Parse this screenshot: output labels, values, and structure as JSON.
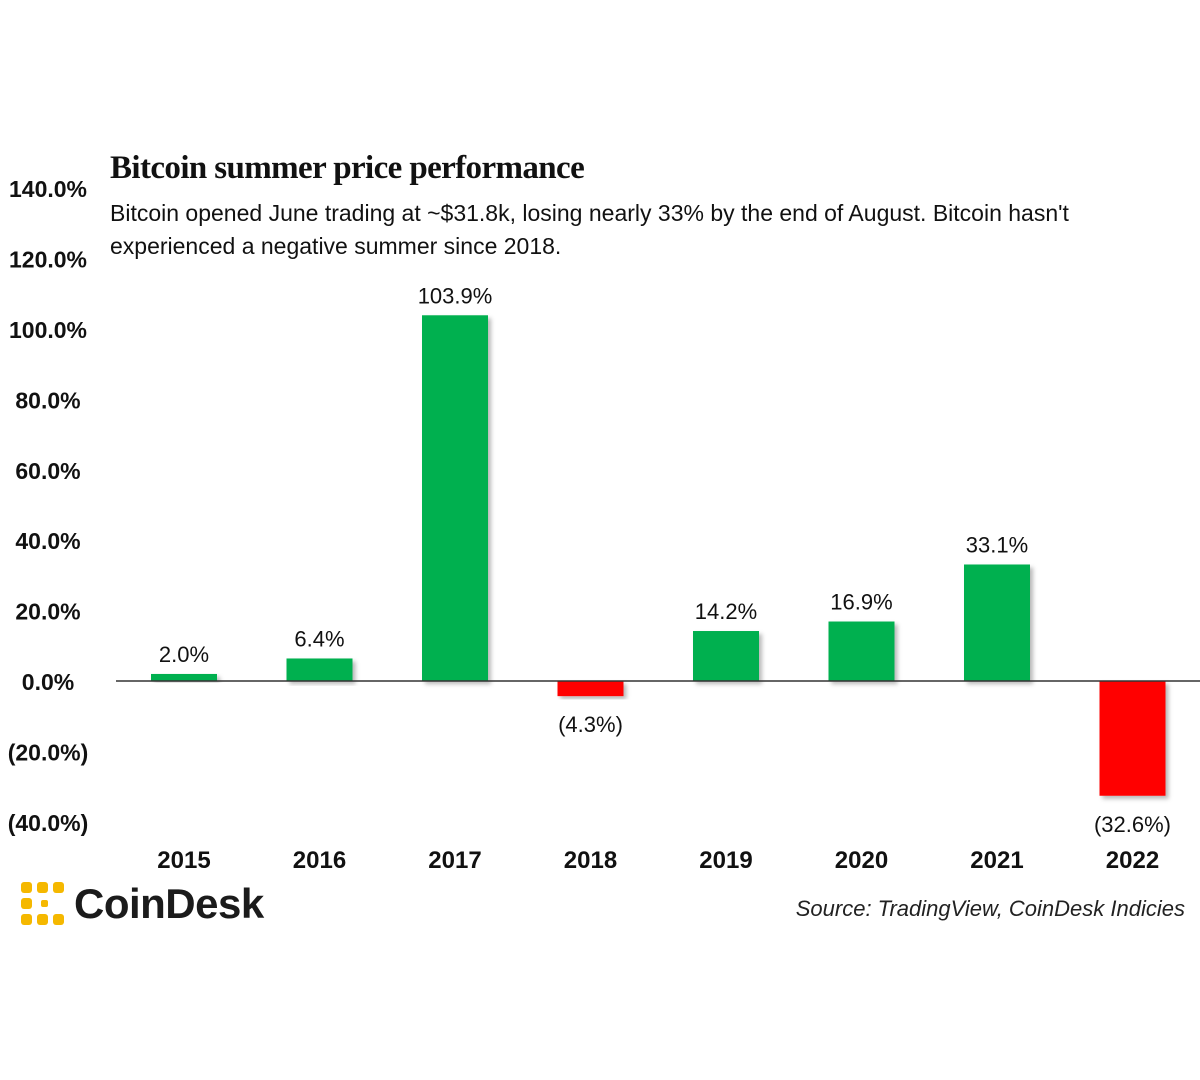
{
  "chart_data": {
    "type": "bar",
    "title": "Bitcoin summer price performance",
    "subtitle": "Bitcoin opened June trading at ~$31.8k, losing nearly 33% by the end of August. Bitcoin hasn't experienced a negative summer since 2018.",
    "categories": [
      "2015",
      "2016",
      "2017",
      "2018",
      "2019",
      "2020",
      "2021",
      "2022"
    ],
    "values": [
      2.0,
      6.4,
      103.9,
      -4.3,
      14.2,
      16.9,
      33.1,
      -32.6
    ],
    "data_labels": [
      "2.0%",
      "6.4%",
      "103.9%",
      "(4.3%)",
      "14.2%",
      "16.9%",
      "33.1%",
      "(32.6%)"
    ],
    "y_ticks": [
      140,
      120,
      100,
      80,
      60,
      40,
      20,
      0,
      -20,
      -40
    ],
    "y_tick_labels": [
      "140.0%",
      "120.0%",
      "100.0%",
      "80.0%",
      "60.0%",
      "40.0%",
      "20.0%",
      "0.0%",
      "(20.0%)",
      "(40.0%)"
    ],
    "ylim": [
      -40,
      140
    ],
    "xlabel": "",
    "ylabel": "",
    "grid": false,
    "colors": {
      "positive": "#00b050",
      "negative": "#ff0000"
    }
  },
  "source": "Source: TradingView, CoinDesk Indicies",
  "brand": {
    "name": "CoinDesk",
    "icon": "coindesk-logo-icon",
    "color": "#f5b800"
  }
}
